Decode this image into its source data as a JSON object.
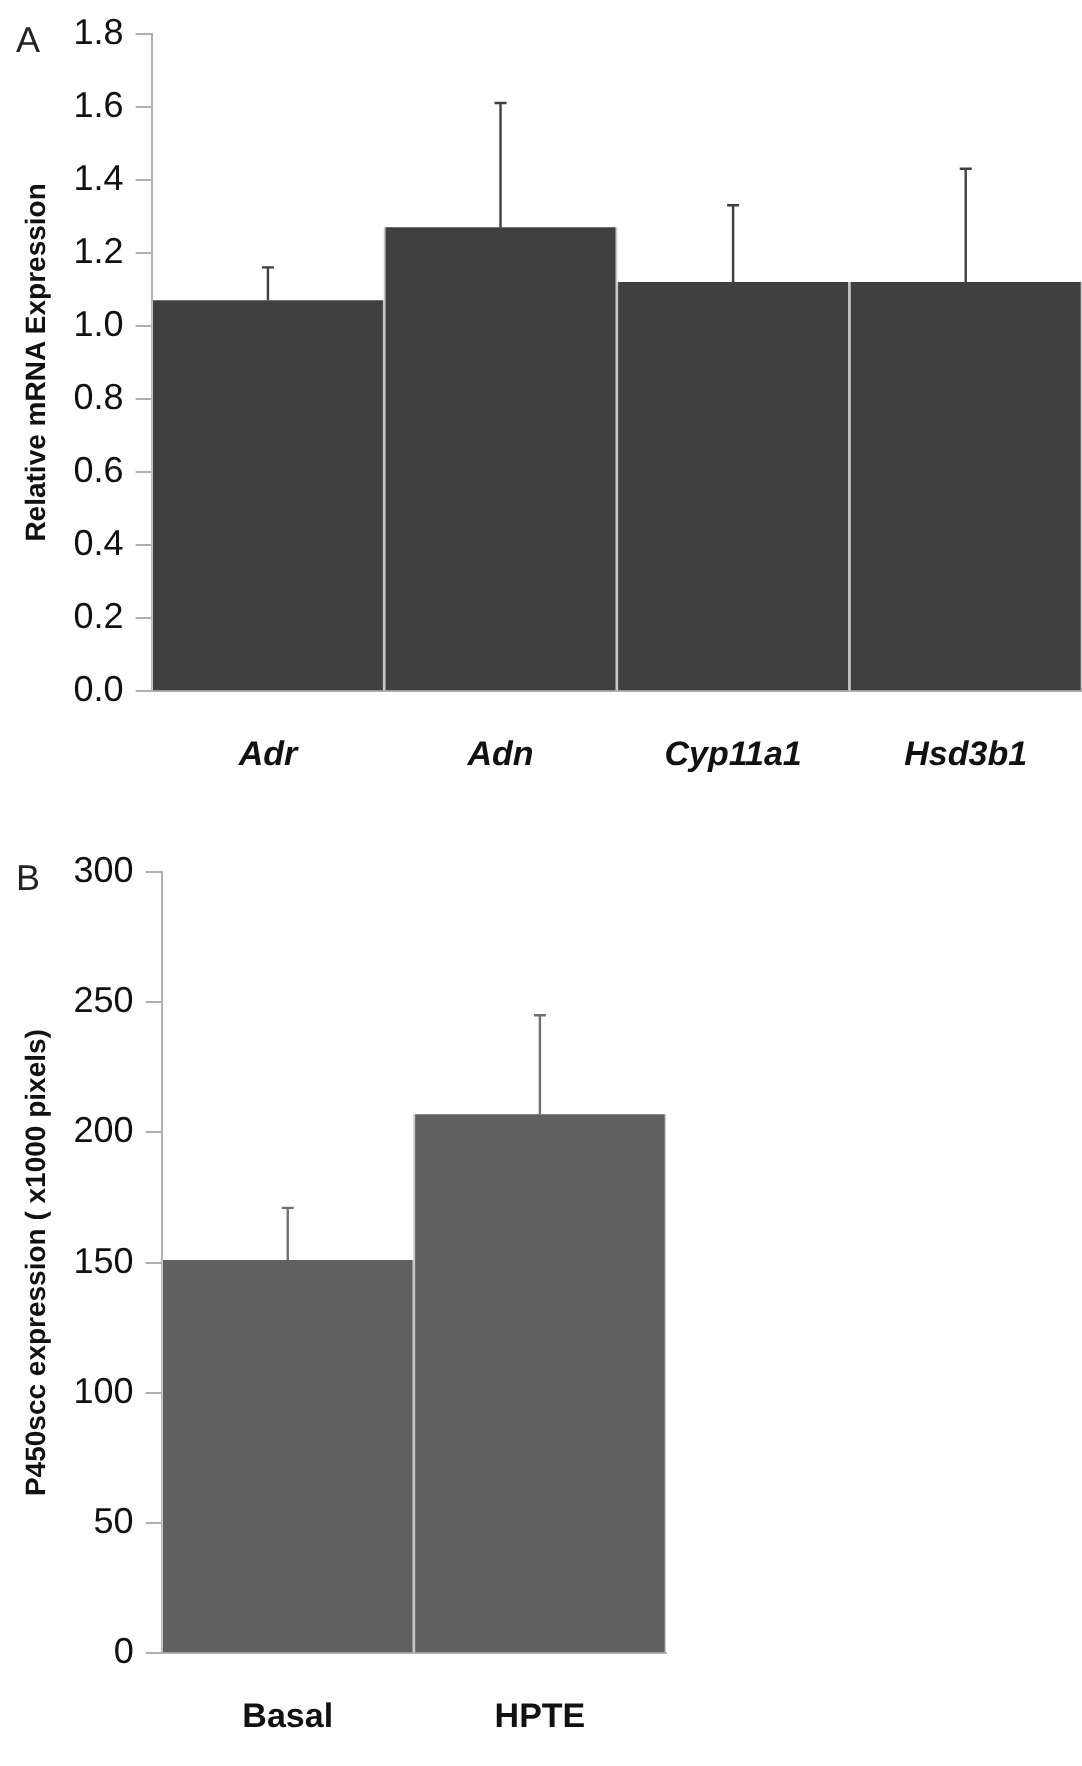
{
  "chart_data": [
    {
      "type": "bar",
      "title": "A",
      "ylabel": "Relative mRNA Expression",
      "categories": [
        "Adr",
        "Adn",
        "Cyp11a1",
        "Hsd3b1"
      ],
      "values": [
        1.07,
        1.27,
        1.12,
        1.12
      ],
      "errors": [
        [
          1.07,
          1.16
        ],
        [
          1.27,
          1.61
        ],
        [
          1.12,
          1.33
        ],
        [
          1.12,
          1.43
        ]
      ],
      "color": "#404040",
      "ylim": [
        0,
        1.8
      ],
      "yticks": [
        {
          "value": 0,
          "label": "0.0"
        },
        {
          "value": 0.2,
          "label": "0.2"
        },
        {
          "value": 0.4,
          "label": "0.4"
        },
        {
          "value": 0.6,
          "label": "0.6"
        },
        {
          "value": 0.8,
          "label": "0.8"
        },
        {
          "value": 1,
          "label": "1.0"
        },
        {
          "value": 1.2,
          "label": "1.2"
        },
        {
          "value": 1.4,
          "label": "1.4"
        },
        {
          "value": 1.6,
          "label": "1.6"
        },
        {
          "value": 1.8,
          "label": "1.8"
        }
      ],
      "grid": false,
      "legend": false
    },
    {
      "type": "bar",
      "title": "B",
      "ylabel": "P450scc expression ( x1000 pixels)",
      "categories": [
        "Basal",
        "HPTE"
      ],
      "values": [
        151,
        207
      ],
      "errors": [
        [
          151,
          171
        ],
        [
          207,
          245
        ]
      ],
      "color": "#606060",
      "ylim": [
        0,
        300
      ],
      "yticks": [
        0,
        50,
        100,
        150,
        200,
        250,
        300
      ],
      "grid": false,
      "legend": false
    }
  ]
}
